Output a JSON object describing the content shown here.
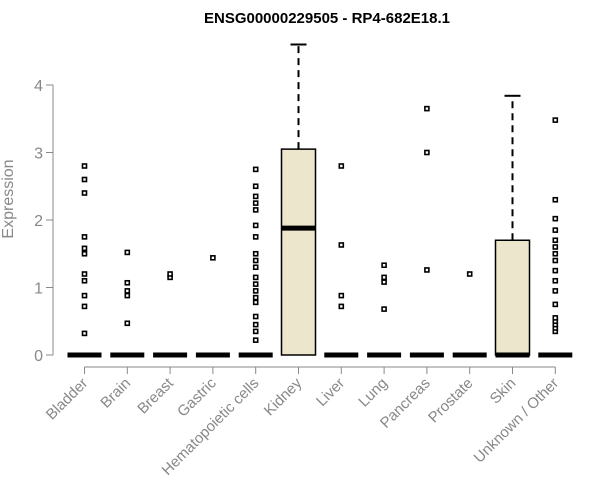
{
  "chart_data": {
    "type": "boxplot",
    "title": "ENSG00000229505 - RP4-682E18.1",
    "xlabel": "",
    "ylabel": "Expression",
    "ylim": [
      0,
      4.6
    ],
    "yticks": [
      0,
      1,
      2,
      3,
      4
    ],
    "grid": false,
    "colors": {
      "box_fill": "#ece6cc",
      "axis": "#888888",
      "marks": "#000000"
    },
    "categories": [
      "Bladder",
      "Brain",
      "Breast",
      "Gastric",
      "Hematopoietic cells",
      "Kidney",
      "Liver",
      "Lung",
      "Pancreas",
      "Prostate",
      "Skin",
      "Unknown / Other"
    ],
    "boxes": [
      {
        "category": "Bladder",
        "q1": 0,
        "median": 0,
        "q3": 0,
        "whisker_low": 0,
        "whisker_high": 0,
        "outliers": [
          0.32,
          0.72,
          0.88,
          1.1,
          1.2,
          1.5,
          1.58,
          1.75,
          2.4,
          2.6,
          2.8
        ]
      },
      {
        "category": "Brain",
        "q1": 0,
        "median": 0,
        "q3": 0,
        "whisker_low": 0,
        "whisker_high": 0,
        "outliers": [
          0.47,
          0.88,
          0.95,
          1.07,
          1.52
        ]
      },
      {
        "category": "Breast",
        "q1": 0,
        "median": 0,
        "q3": 0,
        "whisker_low": 0,
        "whisker_high": 0,
        "outliers": [
          1.15,
          1.2
        ]
      },
      {
        "category": "Gastric",
        "q1": 0,
        "median": 0,
        "q3": 0,
        "whisker_low": 0,
        "whisker_high": 0,
        "outliers": [
          1.44
        ]
      },
      {
        "category": "Hematopoietic cells",
        "q1": 0,
        "median": 0,
        "q3": 0,
        "whisker_low": 0,
        "whisker_high": 0,
        "outliers": [
          0.22,
          0.35,
          0.45,
          0.57,
          0.78,
          0.85,
          0.95,
          1.05,
          1.15,
          1.3,
          1.4,
          1.5,
          1.75,
          1.92,
          2.15,
          2.25,
          2.35,
          2.5,
          2.75
        ]
      },
      {
        "category": "Kidney",
        "q1": 0,
        "median": 1.88,
        "q3": 3.05,
        "whisker_low": 0,
        "whisker_high": 4.6,
        "outliers": []
      },
      {
        "category": "Liver",
        "q1": 0,
        "median": 0,
        "q3": 0,
        "whisker_low": 0,
        "whisker_high": 0,
        "outliers": [
          0.72,
          0.88,
          1.63,
          2.8
        ]
      },
      {
        "category": "Lung",
        "q1": 0,
        "median": 0,
        "q3": 0,
        "whisker_low": 0,
        "whisker_high": 0,
        "outliers": [
          0.68,
          1.08,
          1.15,
          1.33
        ]
      },
      {
        "category": "Pancreas",
        "q1": 0,
        "median": 0,
        "q3": 0,
        "whisker_low": 0,
        "whisker_high": 0,
        "outliers": [
          1.26,
          3.0,
          3.65
        ]
      },
      {
        "category": "Prostate",
        "q1": 0,
        "median": 0,
        "q3": 0,
        "whisker_low": 0,
        "whisker_high": 0,
        "outliers": [
          1.2
        ]
      },
      {
        "category": "Skin",
        "q1": 0,
        "median": 0,
        "q3": 1.7,
        "whisker_low": 0,
        "whisker_high": 3.84,
        "outliers": []
      },
      {
        "category": "Unknown / Other",
        "q1": 0,
        "median": 0,
        "q3": 0,
        "whisker_low": 0,
        "whisker_high": 0,
        "outliers": [
          0.35,
          0.4,
          0.45,
          0.5,
          0.55,
          0.75,
          0.95,
          1.1,
          1.25,
          1.4,
          1.5,
          1.6,
          1.7,
          1.85,
          2.02,
          2.3,
          3.48
        ]
      }
    ]
  }
}
